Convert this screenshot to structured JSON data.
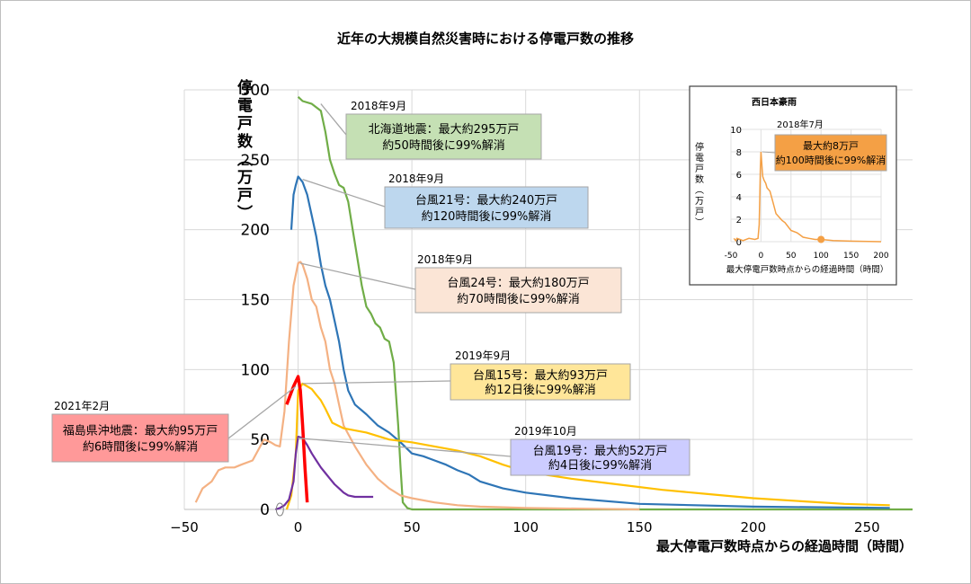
{
  "chart_data": {
    "type": "line",
    "title": "近年の大規模自然災害時における停電戸数の推移",
    "xlabel": "最大停電戸数時点からの経過時間（時間）",
    "ylabel": "停電戸数（万戸）",
    "xlim": [
      -50,
      270
    ],
    "ylim": [
      0,
      300
    ],
    "x_ticks": [
      "−50",
      "0",
      "50",
      "100",
      "150",
      "200",
      "250"
    ],
    "y_ticks": [
      "0",
      "50",
      "100",
      "150",
      "200",
      "250",
      "300"
    ],
    "grid": true,
    "series": [
      {
        "name": "北海道地震",
        "color": "#70ad47",
        "x": [
          0,
          2,
          6,
          10,
          12,
          14,
          16,
          18,
          20,
          22,
          24,
          26,
          28,
          30,
          32,
          34,
          36,
          38,
          40,
          42,
          44,
          45,
          46,
          48,
          50,
          60,
          80,
          100,
          150,
          200,
          250,
          270
        ],
        "y": [
          295,
          292,
          290,
          285,
          270,
          250,
          240,
          232,
          230,
          220,
          200,
          180,
          160,
          145,
          140,
          133,
          130,
          122,
          120,
          105,
          60,
          30,
          5,
          1,
          0,
          0,
          0,
          0,
          0,
          0,
          0,
          0
        ]
      },
      {
        "name": "台風21号",
        "color": "#2e75b6",
        "x": [
          -3,
          -2,
          -1,
          0,
          1,
          2,
          4,
          6,
          8,
          10,
          12,
          14,
          16,
          18,
          20,
          22,
          25,
          30,
          35,
          40,
          45,
          50,
          55,
          60,
          65,
          70,
          75,
          80,
          90,
          100,
          120,
          150,
          200,
          260
        ],
        "y": [
          200,
          225,
          232,
          238,
          236,
          234,
          225,
          210,
          195,
          175,
          160,
          150,
          135,
          120,
          100,
          85,
          75,
          68,
          60,
          55,
          48,
          40,
          38,
          35,
          32,
          28,
          25,
          20,
          15,
          12,
          8,
          4,
          2,
          1
        ]
      },
      {
        "name": "台風24号",
        "color": "#f4b183",
        "x": [
          -45,
          -42,
          -38,
          -35,
          -32,
          -28,
          -25,
          -20,
          -15,
          -12,
          -10,
          -8,
          -6,
          -4,
          -2,
          0,
          1,
          2,
          4,
          6,
          8,
          10,
          12,
          14,
          16,
          18,
          20,
          25,
          30,
          35,
          40,
          45,
          50,
          60,
          70,
          80,
          100,
          150
        ],
        "y": [
          5,
          15,
          20,
          28,
          30,
          30,
          32,
          35,
          50,
          48,
          46,
          45,
          70,
          120,
          160,
          176,
          177,
          175,
          165,
          150,
          145,
          130,
          120,
          100,
          90,
          75,
          60,
          45,
          32,
          22,
          15,
          10,
          8,
          5,
          3,
          2,
          1,
          0
        ]
      },
      {
        "name": "台風15号",
        "color": "#ffc000",
        "x": [
          -5,
          -3,
          -1,
          0,
          2,
          4,
          6,
          8,
          10,
          12,
          15,
          20,
          30,
          40,
          50,
          60,
          70,
          80,
          90,
          100,
          120,
          140,
          160,
          180,
          200,
          220,
          240,
          260
        ],
        "y": [
          0,
          10,
          40,
          85,
          90,
          88,
          86,
          82,
          78,
          72,
          62,
          58,
          55,
          50,
          48,
          45,
          42,
          38,
          32,
          27,
          22,
          18,
          14,
          11,
          8,
          6,
          4,
          3
        ]
      },
      {
        "name": "台風19号",
        "color": "#7030a0",
        "x": [
          -10,
          -8,
          -6,
          -4,
          -2,
          -1,
          0,
          2,
          4,
          6,
          8,
          10,
          12,
          14,
          16,
          18,
          20,
          22,
          25,
          28,
          30,
          33
        ],
        "y": [
          0,
          1,
          3,
          7,
          20,
          40,
          52,
          51,
          46,
          40,
          35,
          30,
          26,
          22,
          18,
          15,
          12,
          10,
          9,
          9,
          9,
          9
        ]
      },
      {
        "name": "福島県沖地震",
        "color": "#ff0000",
        "x": [
          -5,
          -2,
          0,
          1,
          2,
          3,
          4
        ],
        "y": [
          75,
          88,
          95,
          85,
          60,
          30,
          5
        ]
      }
    ],
    "annotations": [
      {
        "date": "2018年9月",
        "lines": [
          "北海道地震：最大約295万戸",
          "約50時間後に99%解消"
        ],
        "fill": "#c5e0b4"
      },
      {
        "date": "2018年9月",
        "lines": [
          "台風21号：最大約240万戸",
          "約120時間後に99%解消"
        ],
        "fill": "#bdd7ee"
      },
      {
        "date": "2018年9月",
        "lines": [
          "台風24号：最大約180万戸",
          "約70時間後に99%解消"
        ],
        "fill": "#fbe5d6"
      },
      {
        "date": "2019年9月",
        "lines": [
          "台風15号：最大約93万戸",
          "約12日後に99%解消"
        ],
        "fill": "#ffe699"
      },
      {
        "date": "2019年10月",
        "lines": [
          "台風19号：最大約52万戸",
          "約4日後に99%解消"
        ],
        "fill": "#ccccff"
      },
      {
        "date": "2021年2月",
        "lines": [
          "福島県沖地震：最大約95万戸",
          "約6時間後に99%解消"
        ],
        "fill": "#ff9999"
      }
    ],
    "inset": {
      "title": "西日本豪雨",
      "date": "2018年7月",
      "lines": [
        "最大約8万戸",
        "約100時間後に99%解消"
      ],
      "fill": "#f4a045",
      "xlabel": "最大停電戸数時点からの経過時間（時間）",
      "ylabel": "停電戸数（万戸）",
      "xlim": [
        -50,
        200
      ],
      "ylim": [
        0,
        10
      ],
      "x_ticks": [
        "-50",
        "0",
        "50",
        "100",
        "150",
        "200"
      ],
      "y_ticks": [
        "0",
        "2",
        "4",
        "6",
        "8",
        "10"
      ],
      "series": {
        "color": "#f4a045",
        "x": [
          -45,
          -42,
          -40,
          -35,
          -30,
          -20,
          -10,
          -5,
          -3,
          -2,
          -1,
          0,
          1,
          2,
          3,
          5,
          8,
          10,
          15,
          20,
          25,
          30,
          35,
          40,
          50,
          60,
          70,
          80,
          90,
          100,
          120,
          150,
          200
        ],
        "y": [
          0.3,
          0.1,
          0.3,
          0.2,
          0.1,
          0.3,
          0.2,
          0.3,
          1.5,
          4,
          6.5,
          8,
          7.2,
          6.5,
          5.8,
          5.5,
          5.2,
          4.8,
          4.5,
          3.5,
          2.5,
          2.2,
          1.9,
          1.7,
          1.0,
          0.8,
          0.4,
          0.3,
          0.2,
          0.2,
          0.1,
          0.05,
          0
        ]
      }
    }
  }
}
